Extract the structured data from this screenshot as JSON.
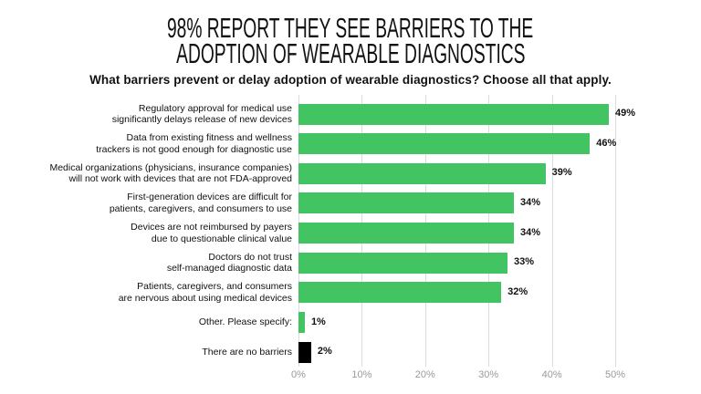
{
  "chart_data": {
    "type": "bar",
    "orientation": "horizontal",
    "title": "98% REPORT THEY SEE BARRIERS TO THE ADOPTION OF WEARABLE DIAGNOSTICS",
    "title_lines": [
      "98% REPORT THEY SEE BARRIERS TO THE",
      "ADOPTION OF WEARABLE DIAGNOSTICS"
    ],
    "subtitle": "What barriers prevent or delay adoption of wearable diagnostics? Choose all that apply.",
    "categories": [
      [
        "Regulatory approval for medical use",
        "significantly delays release of new devices"
      ],
      [
        "Data from existing fitness and wellness",
        "trackers is not good enough for diagnostic use"
      ],
      [
        "Medical organizations (physicians, insurance companies)",
        "will not work with devices that are not FDA-approved"
      ],
      [
        "First-generation devices are difficult for",
        "patients, caregivers, and consumers to use"
      ],
      [
        "Devices are not reimbursed by payers",
        "due to questionable clinical value"
      ],
      [
        "Doctors do not trust",
        "self-managed diagnostic data"
      ],
      [
        "Patients, caregivers, and consumers",
        "are nervous about using medical devices"
      ],
      [
        "Other. Please specify:"
      ],
      [
        "There are no barriers"
      ]
    ],
    "values": [
      49,
      46,
      39,
      34,
      34,
      33,
      32,
      1,
      2
    ],
    "value_labels": [
      "49%",
      "46%",
      "39%",
      "34%",
      "34%",
      "33%",
      "32%",
      "1%",
      "2%"
    ],
    "bar_colors": [
      "#43c463",
      "#43c463",
      "#43c463",
      "#43c463",
      "#43c463",
      "#43c463",
      "#43c463",
      "#43c463",
      "#000000"
    ],
    "xlim": [
      0,
      50
    ],
    "xticks": [
      0,
      10,
      20,
      30,
      40,
      50
    ],
    "xtick_labels": [
      "0%",
      "10%",
      "20%",
      "30%",
      "40%",
      "50%"
    ],
    "grid": true,
    "xlabel": "",
    "ylabel": ""
  }
}
